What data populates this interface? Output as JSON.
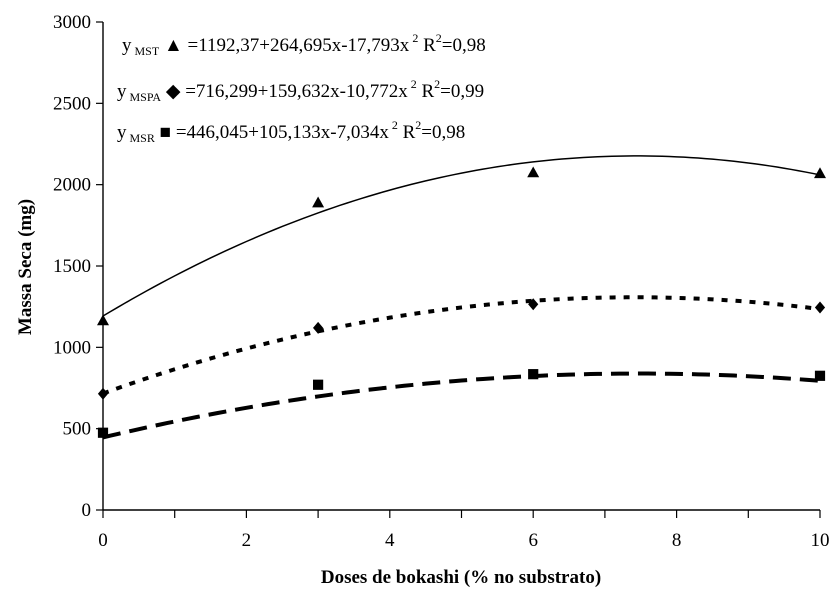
{
  "chart_data": {
    "type": "scatter",
    "xlabel": "Doses de bokashi (% no substrato)",
    "ylabel": "Massa Seca (mg)",
    "xlim": [
      0,
      10
    ],
    "ylim": [
      0,
      3000
    ],
    "x_ticks": [
      0,
      2,
      4,
      6,
      8,
      10
    ],
    "x_tick_labels": [
      "0",
      "2",
      "4",
      "6",
      "8",
      "10"
    ],
    "x_minor_ticks": [
      1,
      3,
      5,
      7,
      9
    ],
    "y_ticks": [
      0,
      500,
      1000,
      1500,
      2000,
      2500,
      3000
    ],
    "y_tick_labels": [
      "0",
      "500",
      "1000",
      "1500",
      "2000",
      "2500",
      "3000"
    ],
    "grid": false,
    "legend_placement": "top-left",
    "x": [
      0,
      3,
      6,
      10
    ],
    "series": [
      {
        "id": "mst",
        "marker": "triangle",
        "line_style": "solid",
        "values": [
          1165,
          1890,
          2075,
          2070
        ],
        "fit": {
          "a": 1192.37,
          "b": 264.695,
          "c": -17.793
        },
        "equation": {
          "y": "y",
          "subscript": "MST",
          "symbol": "▲",
          "rhs": "=1192,37+264,695x-17,793x",
          "power": "2",
          "r2_label": "R",
          "r2_power": "2",
          "r2_value": "=0,98"
        }
      },
      {
        "id": "mspa",
        "marker": "diamond",
        "line_style": "dotted",
        "values": [
          715,
          1120,
          1265,
          1245
        ],
        "fit": {
          "a": 716.299,
          "b": 159.632,
          "c": -10.772
        },
        "equation": {
          "y": "y",
          "subscript": "MSPA",
          "symbol": "◆",
          "rhs": "=716,299+159,632x-10,772x",
          "power": "2",
          "r2_label": "R",
          "r2_power": "2",
          "r2_value": "=0,99"
        }
      },
      {
        "id": "msr",
        "marker": "square",
        "line_style": "dashed",
        "values": [
          475,
          770,
          835,
          825
        ],
        "fit": {
          "a": 446.045,
          "b": 105.133,
          "c": -7.034
        },
        "equation": {
          "y": "y",
          "subscript": "MSR",
          "symbol": "■",
          "rhs": "=446,045+105,133x-7,034x",
          "power": "2",
          "r2_label": "R",
          "r2_power": "2",
          "r2_value": "=0,98"
        }
      }
    ]
  }
}
